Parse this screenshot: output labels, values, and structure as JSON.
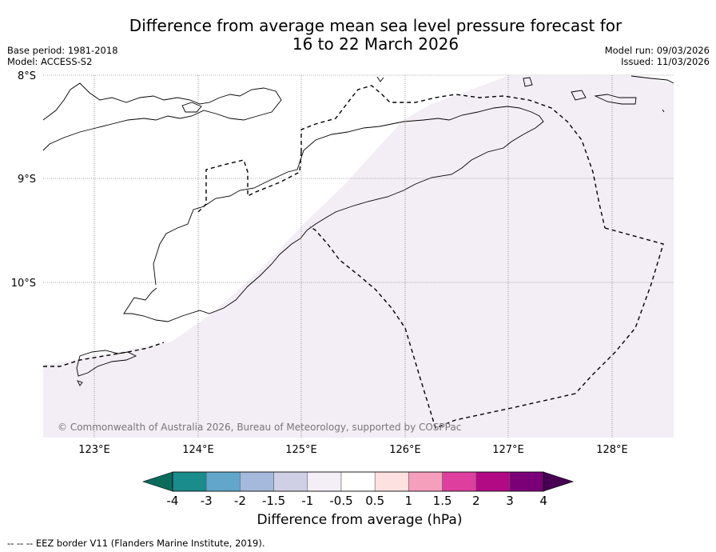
{
  "title": {
    "line1": "Difference from average mean sea level pressure forecast for",
    "line2": "16 to 22 March 2026"
  },
  "meta": {
    "base_period": "Base period: 1981-2018",
    "model": "Model: ACCESS-S2",
    "model_run": "Model run: 09/03/2026",
    "issued": "Issued: 11/03/2026"
  },
  "axes": {
    "lat_labels": [
      "8°S",
      "9°S",
      "10°S"
    ],
    "lon_labels": [
      "123°E",
      "124°E",
      "125°E",
      "126°E",
      "127°E",
      "128°E"
    ],
    "lat_range": [
      -8.0,
      -11.5
    ],
    "lon_range": [
      122.5,
      128.6
    ]
  },
  "copyright": "© Commonwealth of Australia 2026, Bureau of Meteorology, supported by COSPPac",
  "colorbar": {
    "tick_labels": [
      "-4",
      "-3",
      "-2",
      "-1.5",
      "-1",
      "-0.5",
      "0.5",
      "1",
      "1.5",
      "2",
      "3",
      "4"
    ],
    "colors": [
      "#1b8c8c",
      "#62a6cc",
      "#a4b9dc",
      "#cfcfe5",
      "#f4eef7",
      "#ffffff",
      "#fde0e0",
      "#f59fbc",
      "#de3f9f",
      "#b20a85",
      "#7b0078"
    ],
    "under_color": "#0d6b5c",
    "over_color": "#470052",
    "label": "Difference from average (hPa)"
  },
  "legend": {
    "eez": "--  --  -- EEZ border V11 (Flanders Marine Institute, 2019)."
  },
  "field": {
    "shaded_category": "-1 to -0.5",
    "shaded_color": "#f3edf6"
  }
}
